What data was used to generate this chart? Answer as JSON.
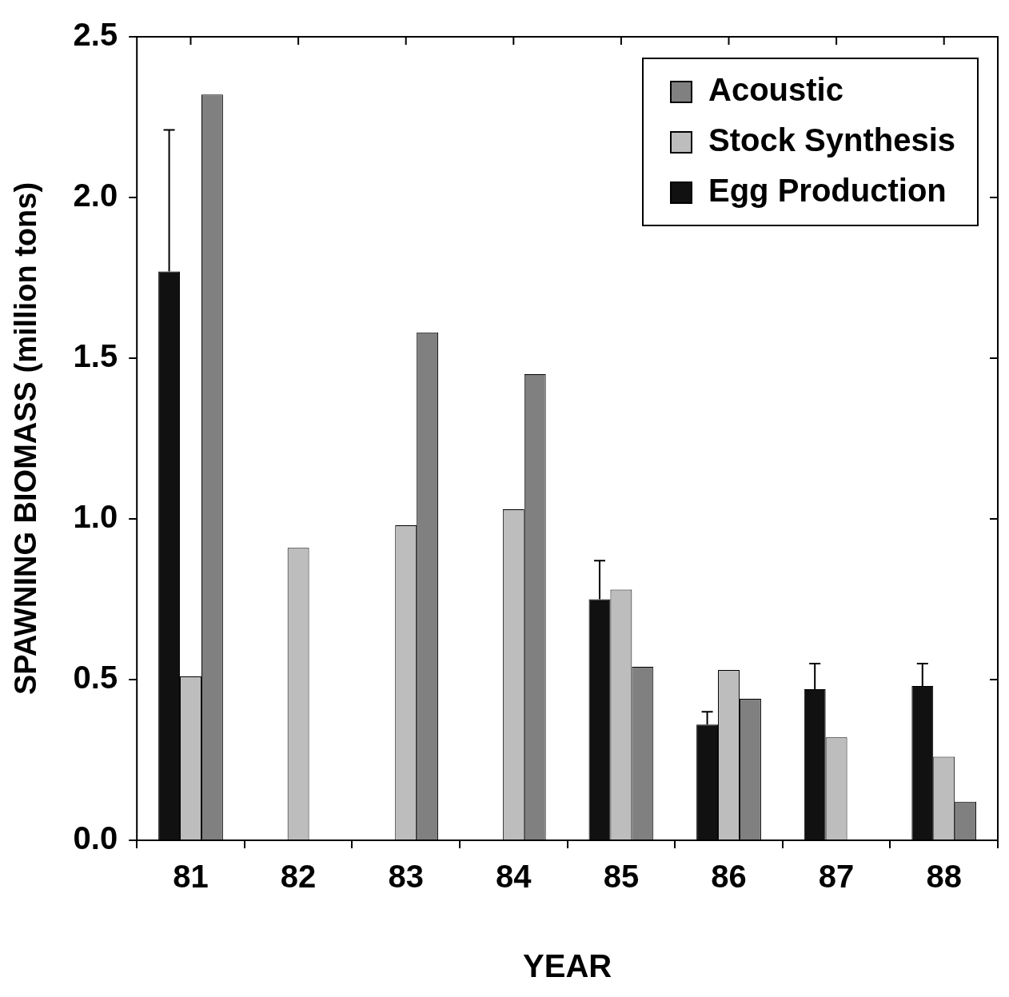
{
  "chart_data": {
    "type": "bar",
    "xlabel": "YEAR",
    "ylabel": "SPAWNING BIOMASS (million tons)",
    "categories": [
      "81",
      "82",
      "83",
      "84",
      "85",
      "86",
      "87",
      "88"
    ],
    "series": [
      {
        "name": "Egg Production",
        "color": "#111111",
        "values": [
          1.77,
          null,
          null,
          null,
          0.75,
          0.36,
          0.47,
          0.48
        ],
        "errors": [
          [
            1.77,
            2.21
          ],
          null,
          null,
          null,
          [
            0.75,
            0.87
          ],
          [
            0.36,
            0.4
          ],
          [
            0.47,
            0.55
          ],
          [
            0.48,
            0.55
          ]
        ]
      },
      {
        "name": "Stock Synthesis",
        "color": "#bdbdbd",
        "values": [
          0.51,
          0.91,
          0.98,
          1.03,
          0.78,
          0.53,
          0.32,
          0.26
        ]
      },
      {
        "name": "Acoustic",
        "color": "#808080",
        "values": [
          2.32,
          null,
          1.58,
          1.45,
          0.54,
          0.44,
          null,
          0.12
        ]
      }
    ],
    "ylim": [
      0,
      2.5
    ],
    "yticks": [
      {
        "value": 0,
        "label": "0.0"
      },
      {
        "value": 0.5,
        "label": "0.5"
      },
      {
        "value": 1,
        "label": "1.0"
      },
      {
        "value": 1.5,
        "label": "1.5"
      },
      {
        "value": 2,
        "label": "2.0"
      },
      {
        "value": 2.5,
        "label": "2.5"
      }
    ],
    "legend": "top right"
  }
}
